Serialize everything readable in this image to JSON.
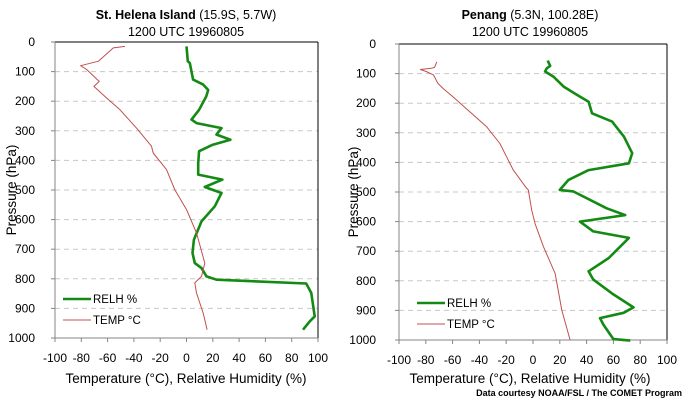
{
  "credit": "Data courtesy NOAA/FSL / The COMET Program",
  "chart_data": [
    {
      "type": "line",
      "title_bold": "St. Helena Island",
      "title_rest": " (15.9S, 5.7W)",
      "subtitle": "1200 UTC 19960805",
      "xlabel": "Temperature (°C), Relative Humidity (%)",
      "ylabel": "Pressure (hPa)",
      "xlim": [
        -100,
        100
      ],
      "ylim": [
        0,
        1000
      ],
      "y_inverted": true,
      "xticks": [
        -100,
        -80,
        -60,
        -40,
        -20,
        0,
        20,
        40,
        60,
        80,
        100
      ],
      "yticks": [
        0,
        100,
        200,
        300,
        400,
        500,
        600,
        700,
        800,
        900,
        1000
      ],
      "grid": "horizontal dashed",
      "legend": "bottom-left",
      "series": [
        {
          "name": "RELH %",
          "color": "#138a13",
          "points": [
            [
              0,
              15
            ],
            [
              1,
              65
            ],
            [
              2.5,
              71
            ],
            [
              5,
              127
            ],
            [
              12.7,
              144
            ],
            [
              16.5,
              162
            ],
            [
              15,
              184
            ],
            [
              9.6,
              229
            ],
            [
              3.8,
              262
            ],
            [
              7.6,
              274
            ],
            [
              26.6,
              291
            ],
            [
              22.8,
              313
            ],
            [
              33.4,
              330
            ],
            [
              20,
              347
            ],
            [
              9.6,
              369
            ],
            [
              8.9,
              409
            ],
            [
              8.9,
              448
            ],
            [
              27.3,
              465
            ],
            [
              13.9,
              490
            ],
            [
              26.6,
              510
            ],
            [
              21.5,
              555
            ],
            [
              11.4,
              606
            ],
            [
              5.6,
              668
            ],
            [
              4.6,
              713
            ],
            [
              6.3,
              747
            ],
            [
              11.4,
              764
            ],
            [
              15.2,
              792
            ],
            [
              22.8,
              803
            ],
            [
              91,
              816
            ],
            [
              94.9,
              848
            ],
            [
              97.5,
              927
            ],
            [
              93.7,
              944
            ],
            [
              88.6,
              972
            ]
          ]
        },
        {
          "name": "TEMP °C",
          "color": "#c0504d",
          "points": [
            [
              -46.8,
              15
            ],
            [
              -55.7,
              20
            ],
            [
              -67,
              65
            ],
            [
              -80.5,
              80
            ],
            [
              -75.9,
              93
            ],
            [
              -68.4,
              125
            ],
            [
              -66.3,
              133
            ],
            [
              -70.4,
              150
            ],
            [
              -60.8,
              189
            ],
            [
              -50.6,
              229
            ],
            [
              -38,
              291
            ],
            [
              -26.6,
              352
            ],
            [
              -25.3,
              375
            ],
            [
              -15.2,
              431
            ],
            [
              -8.9,
              499
            ],
            [
              0,
              566
            ],
            [
              7.6,
              645
            ],
            [
              13.9,
              747
            ],
            [
              11.4,
              792
            ],
            [
              6.3,
              814
            ],
            [
              7.6,
              848
            ],
            [
              12.7,
              916
            ],
            [
              15.7,
              972
            ]
          ]
        }
      ]
    },
    {
      "type": "line",
      "title_bold": "Penang",
      "title_rest": " (5.3N, 100.28E)",
      "subtitle": "1200 UTC 19960805",
      "xlabel": "Temperature (°C), Relative Humidity (%)",
      "ylabel": "Pressure (hPa)",
      "xlim": [
        -100,
        100
      ],
      "ylim": [
        0,
        1000
      ],
      "y_inverted": true,
      "xticks": [
        -100,
        -80,
        -60,
        -40,
        -20,
        0,
        20,
        40,
        60,
        80,
        100
      ],
      "yticks": [
        0,
        100,
        200,
        300,
        400,
        500,
        600,
        700,
        800,
        900,
        1000
      ],
      "grid": "horizontal dashed",
      "legend": "bottom-left",
      "series": [
        {
          "name": "RELH %",
          "color": "#138a13",
          "points": [
            [
              11,
              56
            ],
            [
              12.8,
              74
            ],
            [
              10.2,
              82
            ],
            [
              9,
              93
            ],
            [
              15.2,
              110
            ],
            [
              22.8,
              144
            ],
            [
              32.8,
              172
            ],
            [
              41.5,
              195
            ],
            [
              44,
              234
            ],
            [
              59,
              262
            ],
            [
              67.8,
              313
            ],
            [
              74,
              369
            ],
            [
              71.6,
              403
            ],
            [
              41.5,
              426
            ],
            [
              26.5,
              459
            ],
            [
              20,
              493
            ],
            [
              30,
              498
            ],
            [
              55,
              555
            ],
            [
              68.8,
              578
            ],
            [
              35,
              600
            ],
            [
              45,
              633
            ],
            [
              71.6,
              655
            ],
            [
              56.6,
              723
            ],
            [
              41.5,
              768
            ],
            [
              45,
              796
            ],
            [
              60,
              846
            ],
            [
              75,
              890
            ],
            [
              67.6,
              908
            ],
            [
              50,
              926
            ],
            [
              52.5,
              948
            ],
            [
              60,
              997
            ],
            [
              72.6,
              1002
            ]
          ]
        },
        {
          "name": "TEMP °C",
          "color": "#c0504d",
          "points": [
            [
              -71.8,
              60
            ],
            [
              -73.5,
              79
            ],
            [
              -76,
              82
            ],
            [
              -84,
              86
            ],
            [
              -79.7,
              93
            ],
            [
              -74.2,
              105
            ],
            [
              -71,
              133
            ],
            [
              -67.2,
              150
            ],
            [
              -59.8,
              178
            ],
            [
              -47.2,
              229
            ],
            [
              -34.7,
              279
            ],
            [
              -24.7,
              336
            ],
            [
              -19.7,
              381
            ],
            [
              -14.7,
              426
            ],
            [
              -4.7,
              488
            ],
            [
              -3.5,
              493
            ],
            [
              -1,
              561
            ],
            [
              1.5,
              606
            ],
            [
              7.8,
              685
            ],
            [
              16.5,
              775
            ],
            [
              21.5,
              899
            ],
            [
              27.7,
              1000
            ]
          ]
        }
      ]
    }
  ]
}
